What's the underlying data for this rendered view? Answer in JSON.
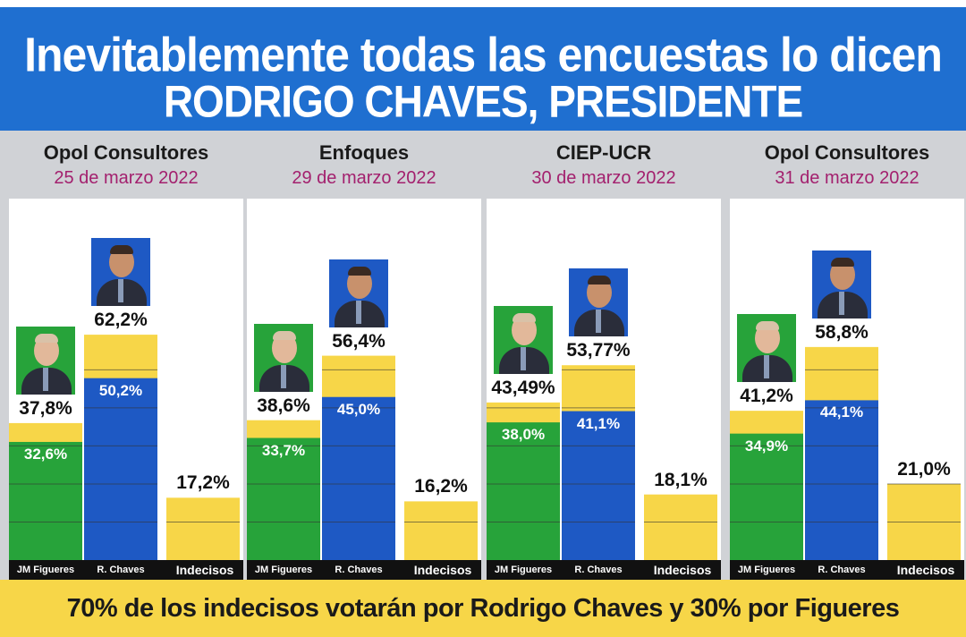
{
  "header": {
    "line1": "Inevitablemente todas las encuestas lo dicen",
    "line2": "RODRIGO CHAVES, PRESIDENTE"
  },
  "footer": {
    "text": "70% de los indecisos votarán por Rodrigo Chaves y 30% por Figueres"
  },
  "colors": {
    "banner": "#1f6fd0",
    "green": "#27a33a",
    "blue": "#1e59c4",
    "yellow": "#f7d648",
    "date": "#a3206e"
  },
  "chart_data": [
    {
      "type": "bar",
      "title": "Opol Consultores",
      "subtitle": "25 de marzo 2022",
      "categories": [
        "JM Figueres",
        "R. Chaves",
        "Indecisos"
      ],
      "series": [
        {
          "values": [
            32.6,
            50.2,
            null
          ],
          "labels": [
            "32,6%",
            "50,2%",
            ""
          ]
        },
        {
          "values": [
            37.8,
            62.2,
            17.2
          ],
          "labels": [
            "37,8%",
            "62,2%",
            "17,2%"
          ]
        }
      ],
      "ylim": [
        0,
        100
      ]
    },
    {
      "type": "bar",
      "title": "Enfoques",
      "subtitle": "29 de marzo 2022",
      "categories": [
        "JM Figueres",
        "R. Chaves",
        "Indecisos"
      ],
      "series": [
        {
          "values": [
            33.7,
            45.0,
            null
          ],
          "labels": [
            "33,7%",
            "45,0%",
            ""
          ]
        },
        {
          "values": [
            38.6,
            56.4,
            16.2
          ],
          "labels": [
            "38,6%",
            "56,4%",
            "16,2%"
          ]
        }
      ],
      "ylim": [
        0,
        100
      ]
    },
    {
      "type": "bar",
      "title": "CIEP-UCR",
      "subtitle": "30 de marzo 2022",
      "categories": [
        "JM Figueres",
        "R. Chaves",
        "Indecisos"
      ],
      "series": [
        {
          "values": [
            38.0,
            41.1,
            null
          ],
          "labels": [
            "38,0%",
            "41,1%",
            ""
          ]
        },
        {
          "values": [
            43.49,
            53.77,
            18.1
          ],
          "labels": [
            "43,49%",
            "53,77%",
            "18,1%"
          ]
        }
      ],
      "ylim": [
        0,
        100
      ]
    },
    {
      "type": "bar",
      "title": "Opol Consultores",
      "subtitle": "31 de marzo 2022",
      "categories": [
        "JM Figueres",
        "R. Chaves",
        "Indecisos"
      ],
      "series": [
        {
          "values": [
            34.9,
            44.1,
            null
          ],
          "labels": [
            "34,9%",
            "44,1%",
            ""
          ]
        },
        {
          "values": [
            41.2,
            58.8,
            21.0
          ],
          "labels": [
            "41,2%",
            "58,8%",
            "21,0%"
          ]
        }
      ],
      "ylim": [
        0,
        100
      ]
    }
  ]
}
